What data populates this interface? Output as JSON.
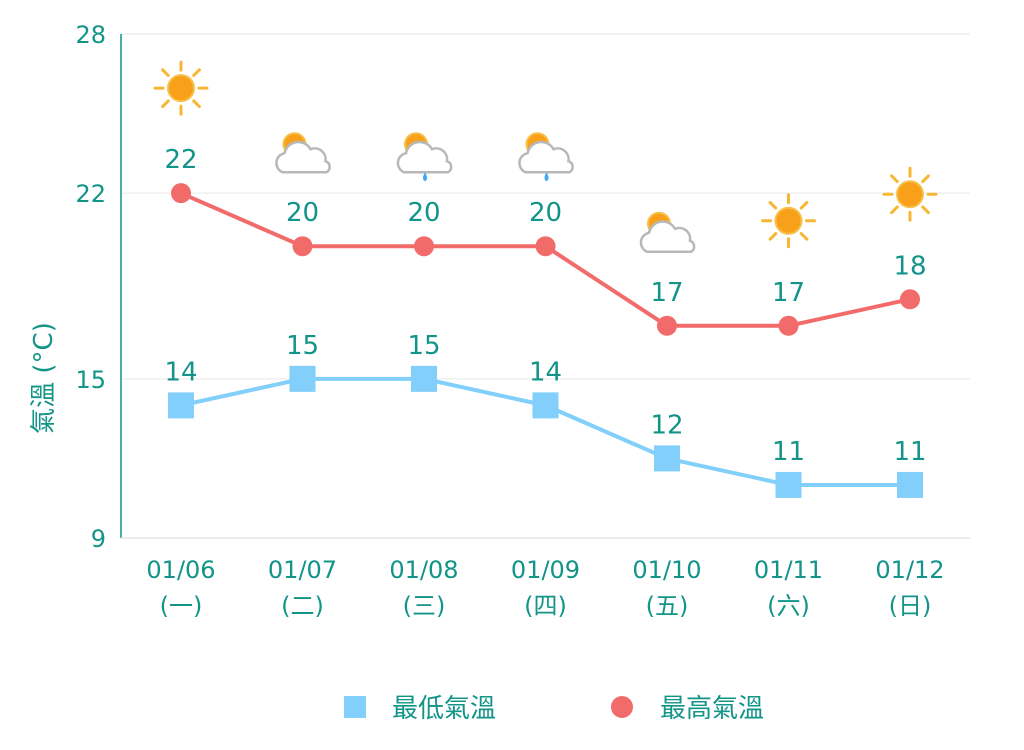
{
  "chart_data": {
    "type": "line",
    "ylabel": "氣溫 (°C)",
    "y_ticks": [
      9,
      15,
      22,
      28
    ],
    "ylim": [
      9,
      28
    ],
    "categories": [
      {
        "date": "01/06",
        "day": "(一)"
      },
      {
        "date": "01/07",
        "day": "(二)"
      },
      {
        "date": "01/08",
        "day": "(三)"
      },
      {
        "date": "01/09",
        "day": "(四)"
      },
      {
        "date": "01/10",
        "day": "(五)"
      },
      {
        "date": "01/11",
        "day": "(六)"
      },
      {
        "date": "01/12",
        "day": "(日)"
      }
    ],
    "series": [
      {
        "name": "最低氣溫",
        "key": "min",
        "color": "#81cffa",
        "marker": "square",
        "values": [
          14,
          15,
          15,
          14,
          12,
          11,
          11
        ]
      },
      {
        "name": "最高氣溫",
        "key": "max",
        "color": "#f26b6b",
        "marker": "circle",
        "values": [
          22,
          20,
          20,
          20,
          17,
          17,
          18
        ]
      }
    ],
    "weather_icons": [
      "sun-icon",
      "partly-cloudy-icon",
      "partly-cloudy-rain-icon",
      "partly-cloudy-rain-icon",
      "partly-cloudy-icon",
      "sun-icon",
      "sun-icon"
    ],
    "grid": true,
    "legend_position": "bottom-center",
    "colors": {
      "text": "#129488",
      "axis": "#129488",
      "grid": "#e6e6e6"
    }
  }
}
